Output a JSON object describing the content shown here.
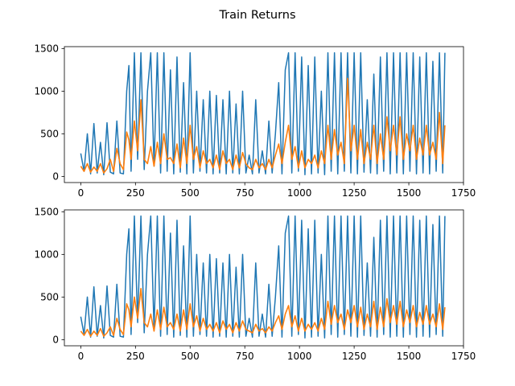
{
  "figure": {
    "title": "Train Returns"
  },
  "colors": {
    "raw": "#1f77b4",
    "smoothed": "#ff7f0e"
  },
  "chart_data": [
    {
      "type": "line",
      "title": "",
      "xlabel": "",
      "ylabel": "",
      "xlim": [
        -75,
        1750
      ],
      "ylim": [
        -72,
        1522
      ],
      "xticks": [
        0,
        250,
        500,
        750,
        1000,
        1250,
        1500,
        1750
      ],
      "yticks": [
        0,
        500,
        1000,
        1500
      ],
      "grid": false,
      "legend": "none",
      "series": [
        {
          "role": "raw",
          "color": "#1f77b4",
          "x": [
            0,
            15,
            30,
            45,
            60,
            75,
            90,
            105,
            120,
            135,
            150,
            165,
            180,
            195,
            210,
            220,
            230,
            245,
            260,
            275,
            290,
            305,
            320,
            335,
            350,
            365,
            380,
            395,
            410,
            425,
            440,
            455,
            470,
            485,
            500,
            515,
            530,
            545,
            560,
            575,
            590,
            605,
            620,
            635,
            650,
            665,
            680,
            695,
            710,
            725,
            740,
            755,
            770,
            785,
            800,
            815,
            830,
            845,
            860,
            875,
            890,
            905,
            920,
            935,
            950,
            965,
            980,
            995,
            1010,
            1025,
            1040,
            1055,
            1070,
            1085,
            1100,
            1115,
            1130,
            1145,
            1160,
            1175,
            1190,
            1205,
            1220,
            1235,
            1250,
            1265,
            1280,
            1295,
            1310,
            1325,
            1340,
            1355,
            1370,
            1385,
            1400,
            1415,
            1430,
            1445,
            1460,
            1475,
            1490,
            1505,
            1520,
            1535,
            1550,
            1565,
            1580,
            1595,
            1610,
            1625,
            1640,
            1655,
            1665
          ],
          "values": [
            270,
            60,
            500,
            30,
            620,
            40,
            400,
            20,
            630,
            50,
            30,
            650,
            40,
            30,
            1000,
            1300,
            60,
            1450,
            200,
            1450,
            80,
            1000,
            1450,
            120,
            1450,
            40,
            1450,
            60,
            1250,
            30,
            1400,
            50,
            1100,
            30,
            1450,
            40,
            1000,
            60,
            900,
            40,
            1000,
            30,
            950,
            40,
            900,
            30,
            1000,
            40,
            850,
            30,
            1000,
            40,
            250,
            30,
            900,
            40,
            300,
            30,
            650,
            40,
            500,
            1100,
            30,
            1250,
            1450,
            40,
            1450,
            60,
            1400,
            20,
            1300,
            30,
            1400,
            40,
            1000,
            20,
            1450,
            60,
            1450,
            30,
            1450,
            60,
            1450,
            40,
            1450,
            30,
            1450,
            50,
            900,
            40,
            1200,
            30,
            1400,
            60,
            1450,
            30,
            1450,
            40,
            1450,
            30,
            1450,
            60,
            1450,
            30,
            1400,
            40,
            1450,
            30,
            1350,
            60,
            1450,
            40,
            1450
          ]
        },
        {
          "role": "smoothed",
          "color": "#ff7f0e",
          "x": [
            0,
            15,
            30,
            45,
            60,
            75,
            90,
            105,
            120,
            135,
            150,
            165,
            180,
            195,
            210,
            220,
            230,
            245,
            260,
            275,
            290,
            305,
            320,
            335,
            350,
            365,
            380,
            395,
            410,
            425,
            440,
            455,
            470,
            485,
            500,
            515,
            530,
            545,
            560,
            575,
            590,
            605,
            620,
            635,
            650,
            665,
            680,
            695,
            710,
            725,
            740,
            755,
            770,
            785,
            800,
            815,
            830,
            845,
            860,
            875,
            890,
            905,
            920,
            935,
            950,
            965,
            980,
            995,
            1010,
            1025,
            1040,
            1055,
            1070,
            1085,
            1100,
            1115,
            1130,
            1145,
            1160,
            1175,
            1190,
            1205,
            1220,
            1235,
            1250,
            1265,
            1280,
            1295,
            1310,
            1325,
            1340,
            1355,
            1370,
            1385,
            1400,
            1415,
            1430,
            1445,
            1460,
            1475,
            1490,
            1505,
            1520,
            1535,
            1550,
            1565,
            1580,
            1595,
            1610,
            1625,
            1640,
            1655,
            1665
          ],
          "values": [
            120,
            60,
            150,
            50,
            110,
            60,
            150,
            40,
            90,
            200,
            60,
            330,
            150,
            80,
            520,
            430,
            200,
            650,
            300,
            900,
            200,
            150,
            350,
            120,
            400,
            150,
            500,
            200,
            220,
            150,
            380,
            100,
            450,
            150,
            600,
            200,
            350,
            100,
            300,
            150,
            200,
            100,
            250,
            80,
            300,
            150,
            200,
            80,
            250,
            100,
            280,
            150,
            100,
            80,
            200,
            100,
            150,
            80,
            200,
            100,
            250,
            380,
            150,
            400,
            600,
            200,
            350,
            100,
            300,
            100,
            200,
            150,
            250,
            100,
            300,
            150,
            600,
            200,
            550,
            250,
            400,
            150,
            1150,
            300,
            600,
            200,
            550,
            150,
            400,
            200,
            600,
            150,
            500,
            200,
            700,
            300,
            600,
            250,
            700,
            200,
            500,
            300,
            600,
            200,
            450,
            250,
            600,
            250,
            400,
            200,
            750,
            150,
            600
          ]
        }
      ]
    },
    {
      "type": "line",
      "title": "",
      "xlabel": "",
      "ylabel": "",
      "xlim": [
        -75,
        1750
      ],
      "ylim": [
        -72,
        1522
      ],
      "xticks": [
        0,
        250,
        500,
        750,
        1000,
        1250,
        1500,
        1750
      ],
      "yticks": [
        0,
        500,
        1000,
        1500
      ],
      "grid": false,
      "legend": "none",
      "series": [
        {
          "role": "raw",
          "color": "#1f77b4",
          "x": [
            0,
            15,
            30,
            45,
            60,
            75,
            90,
            105,
            120,
            135,
            150,
            165,
            180,
            195,
            210,
            220,
            230,
            245,
            260,
            275,
            290,
            305,
            320,
            335,
            350,
            365,
            380,
            395,
            410,
            425,
            440,
            455,
            470,
            485,
            500,
            515,
            530,
            545,
            560,
            575,
            590,
            605,
            620,
            635,
            650,
            665,
            680,
            695,
            710,
            725,
            740,
            755,
            770,
            785,
            800,
            815,
            830,
            845,
            860,
            875,
            890,
            905,
            920,
            935,
            950,
            965,
            980,
            995,
            1010,
            1025,
            1040,
            1055,
            1070,
            1085,
            1100,
            1115,
            1130,
            1145,
            1160,
            1175,
            1190,
            1205,
            1220,
            1235,
            1250,
            1265,
            1280,
            1295,
            1310,
            1325,
            1340,
            1355,
            1370,
            1385,
            1400,
            1415,
            1430,
            1445,
            1460,
            1475,
            1490,
            1505,
            1520,
            1535,
            1550,
            1565,
            1580,
            1595,
            1610,
            1625,
            1640,
            1655,
            1665
          ],
          "values": [
            270,
            60,
            500,
            30,
            620,
            40,
            400,
            20,
            630,
            50,
            30,
            650,
            40,
            30,
            1000,
            1300,
            60,
            1450,
            200,
            1450,
            80,
            1000,
            1450,
            120,
            1450,
            40,
            1450,
            60,
            1250,
            30,
            1400,
            50,
            1100,
            30,
            1450,
            40,
            1000,
            60,
            900,
            40,
            1000,
            30,
            950,
            40,
            900,
            30,
            1000,
            40,
            850,
            30,
            1000,
            40,
            250,
            30,
            900,
            40,
            300,
            30,
            650,
            40,
            500,
            1100,
            30,
            1250,
            1450,
            40,
            1450,
            60,
            1400,
            20,
            1300,
            30,
            1400,
            40,
            1000,
            20,
            1450,
            60,
            1450,
            30,
            1450,
            60,
            1450,
            40,
            1450,
            30,
            1450,
            50,
            900,
            40,
            1200,
            30,
            1400,
            60,
            1450,
            30,
            1450,
            40,
            1450,
            30,
            1450,
            60,
            1450,
            30,
            1400,
            40,
            1450,
            30,
            1350,
            60,
            1450,
            40,
            1450
          ]
        },
        {
          "role": "smoothed",
          "color": "#ff7f0e",
          "x": [
            0,
            15,
            30,
            45,
            60,
            75,
            90,
            105,
            120,
            135,
            150,
            165,
            180,
            195,
            210,
            220,
            230,
            245,
            260,
            275,
            290,
            305,
            320,
            335,
            350,
            365,
            380,
            395,
            410,
            425,
            440,
            455,
            470,
            485,
            500,
            515,
            530,
            545,
            560,
            575,
            590,
            605,
            620,
            635,
            650,
            665,
            680,
            695,
            710,
            725,
            740,
            755,
            770,
            785,
            800,
            815,
            830,
            845,
            860,
            875,
            890,
            905,
            920,
            935,
            950,
            965,
            980,
            995,
            1010,
            1025,
            1040,
            1055,
            1070,
            1085,
            1100,
            1115,
            1130,
            1145,
            1160,
            1175,
            1190,
            1205,
            1220,
            1235,
            1250,
            1265,
            1280,
            1295,
            1310,
            1325,
            1340,
            1355,
            1370,
            1385,
            1400,
            1415,
            1430,
            1445,
            1460,
            1475,
            1490,
            1505,
            1520,
            1535,
            1550,
            1565,
            1580,
            1595,
            1610,
            1625,
            1640,
            1655,
            1665
          ],
          "values": [
            100,
            50,
            120,
            40,
            100,
            50,
            130,
            40,
            80,
            150,
            50,
            250,
            120,
            60,
            420,
            350,
            150,
            500,
            250,
            600,
            200,
            150,
            300,
            100,
            350,
            120,
            380,
            150,
            200,
            120,
            300,
            100,
            350,
            120,
            420,
            150,
            280,
            100,
            250,
            120,
            180,
            100,
            200,
            80,
            220,
            120,
            180,
            80,
            200,
            100,
            220,
            120,
            100,
            80,
            180,
            100,
            130,
            80,
            150,
            100,
            200,
            280,
            120,
            300,
            400,
            150,
            280,
            100,
            250,
            100,
            180,
            120,
            200,
            100,
            250,
            120,
            450,
            180,
            400,
            200,
            300,
            120,
            350,
            200,
            400,
            150,
            380,
            120,
            300,
            150,
            450,
            120,
            380,
            150,
            480,
            200,
            400,
            180,
            450,
            150,
            350,
            200,
            400,
            150,
            320,
            180,
            400,
            180,
            300,
            150,
            420,
            120,
            380
          ]
        }
      ]
    }
  ]
}
